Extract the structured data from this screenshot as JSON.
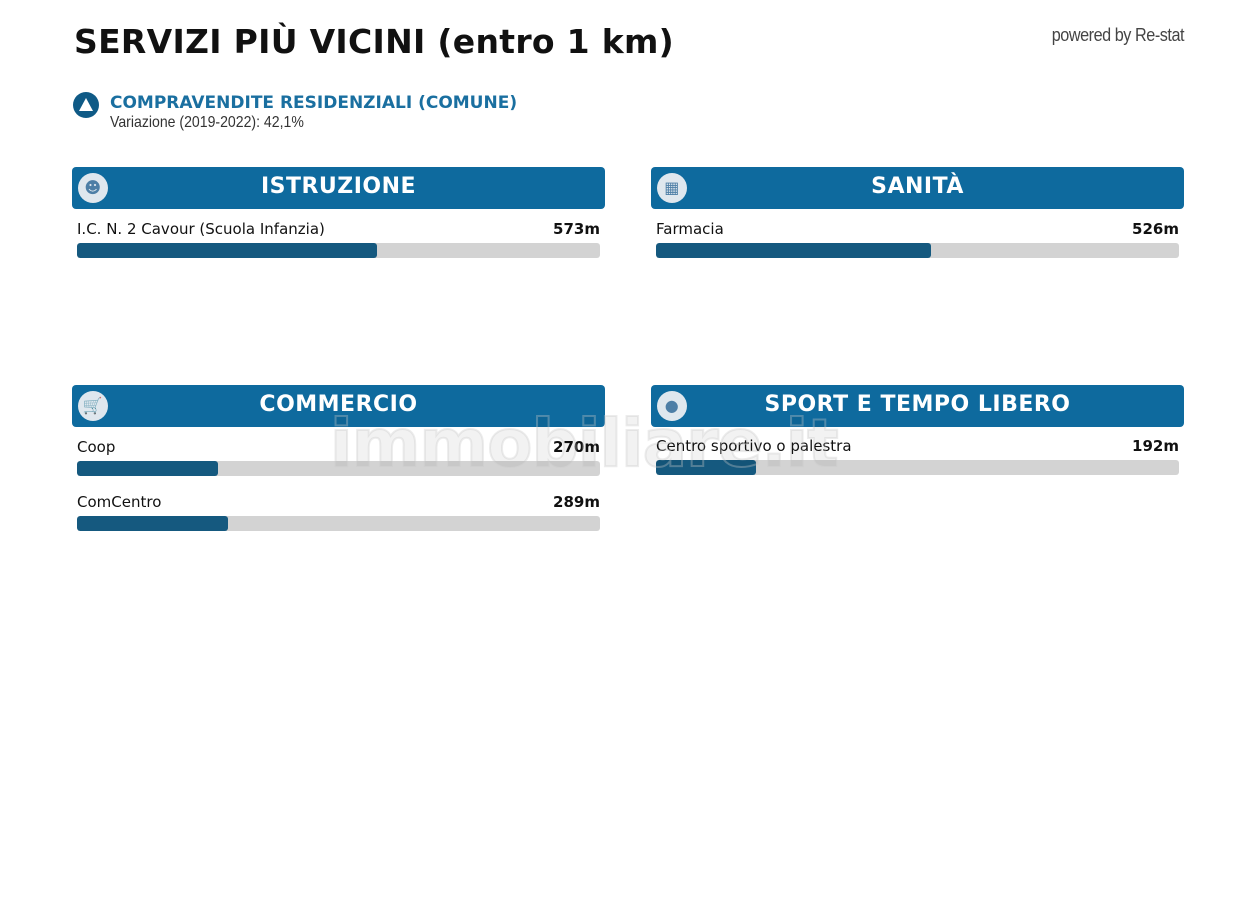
{
  "header": {
    "title": "SERVIZI PIÙ VICINI (entro 1 km)",
    "powered_by": "powered by Re-stat"
  },
  "trend": {
    "icon": "triangle-up-icon",
    "title": "COMPRAVENDITE RESIDENZIALI (COMUNE)",
    "subtitle": "Variazione (2019-2022): 42,1%"
  },
  "colors": {
    "header": "#0e6a9e",
    "bar_fill": "#15597f",
    "bar_track": "#d3d3d3",
    "accent_text": "#1a6fa0"
  },
  "max_distance_m": 1000,
  "cards": [
    {
      "title": "ISTRUZIONE",
      "icon": "student-icon",
      "items": [
        {
          "label": "I.C. N. 2 Cavour (Scuola Infanzia)",
          "value": "573m",
          "meters": 573
        }
      ]
    },
    {
      "title": "SANITÀ",
      "icon": "hospital-icon",
      "items": [
        {
          "label": "Farmacia",
          "value": "526m",
          "meters": 526
        }
      ]
    },
    {
      "title": "COMMERCIO",
      "icon": "cart-icon",
      "items": [
        {
          "label": "Coop",
          "value": "270m",
          "meters": 270
        },
        {
          "label": "ComCentro",
          "value": "289m",
          "meters": 289
        }
      ]
    },
    {
      "title": "SPORT E TEMPO LIBERO",
      "icon": "racket-icon",
      "items": [
        {
          "label": "Centro sportivo o palestra",
          "value": "192m",
          "meters": 192
        }
      ]
    }
  ],
  "watermark": "immobiliare.it"
}
